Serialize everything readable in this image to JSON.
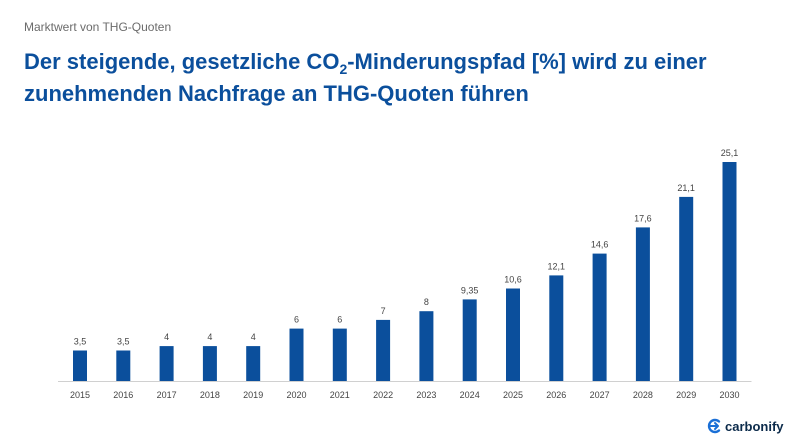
{
  "header": {
    "subtitle": "Marktwert von THG-Quoten",
    "title_part1": "Der steigende, gesetzliche CO",
    "title_sub": "2",
    "title_part2": "-Minderungspfad [%] wird zu einer",
    "title_line2": "zunehmenden Nachfrage an THG-Quoten führen"
  },
  "brand": {
    "name": "carbonify",
    "icon": "carbonify-logo-icon"
  },
  "colors": {
    "bar": "#0b4f9c",
    "title": "#0b4f9c",
    "label": "#444444",
    "axis": "#d0d0d0"
  },
  "chart_data": {
    "type": "bar",
    "categories": [
      "2015",
      "2016",
      "2017",
      "2018",
      "2019",
      "2020",
      "2021",
      "2022",
      "2023",
      "2024",
      "2025",
      "2026",
      "2027",
      "2028",
      "2029",
      "2030"
    ],
    "values": [
      3.5,
      3.5,
      4,
      4,
      4,
      6,
      6,
      7,
      8,
      9.35,
      10.6,
      12.1,
      14.6,
      17.6,
      21.1,
      25.1
    ],
    "value_labels": [
      "3,5",
      "3,5",
      "4",
      "4",
      "4",
      "6",
      "6",
      "7",
      "8",
      "9,35",
      "10,6",
      "12,1",
      "14,6",
      "17,6",
      "21,1",
      "25,1"
    ],
    "title": "",
    "xlabel": "",
    "ylabel": "",
    "ylim": [
      0,
      25.1
    ],
    "grid": false,
    "legend": "none"
  }
}
